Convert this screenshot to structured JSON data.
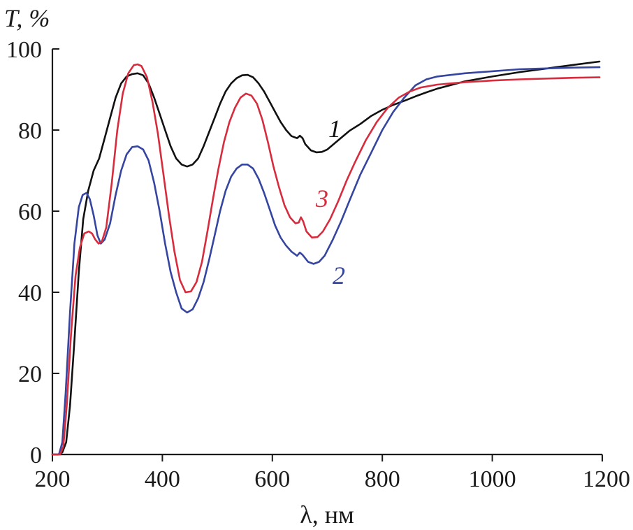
{
  "chart_data": {
    "type": "line",
    "ylabel": "T, %",
    "xlabel": "λ, нм",
    "xlim": [
      200,
      1200
    ],
    "ylim": [
      0,
      100
    ],
    "x_ticks": [
      "200",
      "400",
      "600",
      "800",
      "1000",
      "1200"
    ],
    "y_ticks": [
      "0",
      "20",
      "40",
      "60",
      "80",
      "100"
    ],
    "grid": false,
    "series": [
      {
        "name": "1",
        "color": "#111111",
        "points": [
          [
            200,
            0
          ],
          [
            210,
            0
          ],
          [
            218,
            0.5
          ],
          [
            225,
            3
          ],
          [
            232,
            12
          ],
          [
            240,
            28
          ],
          [
            248,
            45
          ],
          [
            256,
            58
          ],
          [
            265,
            65
          ],
          [
            275,
            70
          ],
          [
            285,
            73
          ],
          [
            295,
            78
          ],
          [
            305,
            83
          ],
          [
            315,
            88
          ],
          [
            325,
            91.5
          ],
          [
            335,
            93.2
          ],
          [
            345,
            93.8
          ],
          [
            355,
            94
          ],
          [
            365,
            93.5
          ],
          [
            375,
            91.5
          ],
          [
            385,
            88
          ],
          [
            395,
            84
          ],
          [
            405,
            80
          ],
          [
            415,
            76
          ],
          [
            425,
            73
          ],
          [
            435,
            71.5
          ],
          [
            445,
            71
          ],
          [
            455,
            71.5
          ],
          [
            465,
            73
          ],
          [
            475,
            76
          ],
          [
            485,
            79.5
          ],
          [
            495,
            83
          ],
          [
            505,
            86.5
          ],
          [
            515,
            89.5
          ],
          [
            525,
            91.5
          ],
          [
            535,
            92.8
          ],
          [
            545,
            93.5
          ],
          [
            555,
            93.6
          ],
          [
            565,
            93
          ],
          [
            575,
            91.5
          ],
          [
            585,
            89.5
          ],
          [
            595,
            87
          ],
          [
            605,
            84.5
          ],
          [
            615,
            82
          ],
          [
            625,
            80
          ],
          [
            635,
            78.5
          ],
          [
            645,
            78
          ],
          [
            650,
            78.6
          ],
          [
            655,
            78
          ],
          [
            660,
            76.5
          ],
          [
            670,
            75
          ],
          [
            680,
            74.5
          ],
          [
            690,
            74.6
          ],
          [
            700,
            75.2
          ],
          [
            720,
            77.5
          ],
          [
            740,
            79.8
          ],
          [
            760,
            81.5
          ],
          [
            780,
            83.5
          ],
          [
            800,
            85
          ],
          [
            820,
            86.2
          ],
          [
            840,
            87.2
          ],
          [
            860,
            88.3
          ],
          [
            880,
            89.3
          ],
          [
            900,
            90.2
          ],
          [
            950,
            92
          ],
          [
            1000,
            93.2
          ],
          [
            1050,
            94.3
          ],
          [
            1100,
            95.2
          ],
          [
            1150,
            96.1
          ],
          [
            1195,
            96.9
          ]
        ]
      },
      {
        "name": "2",
        "color": "#3545a0",
        "points": [
          [
            200,
            0
          ],
          [
            212,
            0
          ],
          [
            218,
            3
          ],
          [
            224,
            15
          ],
          [
            232,
            35
          ],
          [
            240,
            52
          ],
          [
            248,
            61
          ],
          [
            255,
            64
          ],
          [
            262,
            64.5
          ],
          [
            268,
            63
          ],
          [
            275,
            59
          ],
          [
            282,
            54
          ],
          [
            288,
            52
          ],
          [
            295,
            53
          ],
          [
            305,
            57
          ],
          [
            315,
            64
          ],
          [
            325,
            70
          ],
          [
            335,
            74
          ],
          [
            345,
            75.8
          ],
          [
            355,
            76
          ],
          [
            365,
            75.2
          ],
          [
            375,
            72.5
          ],
          [
            385,
            67
          ],
          [
            395,
            60
          ],
          [
            405,
            52
          ],
          [
            415,
            45
          ],
          [
            425,
            40
          ],
          [
            435,
            36
          ],
          [
            445,
            35
          ],
          [
            455,
            35.8
          ],
          [
            465,
            38.5
          ],
          [
            475,
            42.5
          ],
          [
            485,
            48
          ],
          [
            495,
            54
          ],
          [
            505,
            60
          ],
          [
            515,
            65
          ],
          [
            525,
            68.5
          ],
          [
            535,
            70.5
          ],
          [
            545,
            71.5
          ],
          [
            555,
            71.5
          ],
          [
            565,
            70.5
          ],
          [
            575,
            68
          ],
          [
            585,
            64.5
          ],
          [
            595,
            60.5
          ],
          [
            605,
            56.5
          ],
          [
            615,
            53.5
          ],
          [
            625,
            51.5
          ],
          [
            635,
            50
          ],
          [
            645,
            49
          ],
          [
            650,
            49.8
          ],
          [
            655,
            49.2
          ],
          [
            665,
            47.5
          ],
          [
            675,
            47
          ],
          [
            685,
            47.5
          ],
          [
            695,
            49
          ],
          [
            710,
            53
          ],
          [
            725,
            57.5
          ],
          [
            740,
            62.5
          ],
          [
            760,
            69
          ],
          [
            780,
            74.5
          ],
          [
            800,
            80
          ],
          [
            820,
            84.5
          ],
          [
            840,
            88
          ],
          [
            860,
            91
          ],
          [
            880,
            92.5
          ],
          [
            900,
            93.2
          ],
          [
            950,
            94
          ],
          [
            1000,
            94.5
          ],
          [
            1050,
            95
          ],
          [
            1100,
            95.2
          ],
          [
            1150,
            95.4
          ],
          [
            1195,
            95.5
          ]
        ]
      },
      {
        "name": "3",
        "color": "#d62c3d",
        "points": [
          [
            200,
            0
          ],
          [
            214,
            0
          ],
          [
            220,
            2
          ],
          [
            226,
            12
          ],
          [
            234,
            30
          ],
          [
            242,
            44
          ],
          [
            250,
            51
          ],
          [
            258,
            54.5
          ],
          [
            266,
            55
          ],
          [
            272,
            54.5
          ],
          [
            278,
            53
          ],
          [
            284,
            52
          ],
          [
            290,
            52.5
          ],
          [
            298,
            56
          ],
          [
            308,
            67
          ],
          [
            318,
            80
          ],
          [
            328,
            89
          ],
          [
            338,
            94
          ],
          [
            348,
            96
          ],
          [
            355,
            96.2
          ],
          [
            362,
            95.8
          ],
          [
            372,
            93
          ],
          [
            382,
            87
          ],
          [
            392,
            79
          ],
          [
            402,
            69
          ],
          [
            412,
            59
          ],
          [
            422,
            50
          ],
          [
            432,
            43
          ],
          [
            442,
            40
          ],
          [
            452,
            40.2
          ],
          [
            462,
            42.5
          ],
          [
            472,
            47.5
          ],
          [
            482,
            55
          ],
          [
            492,
            63
          ],
          [
            502,
            70.5
          ],
          [
            512,
            77
          ],
          [
            522,
            82
          ],
          [
            532,
            85.5
          ],
          [
            542,
            88
          ],
          [
            552,
            89
          ],
          [
            562,
            88.5
          ],
          [
            572,
            86.5
          ],
          [
            582,
            82.5
          ],
          [
            592,
            77
          ],
          [
            602,
            71
          ],
          [
            612,
            66
          ],
          [
            622,
            61.5
          ],
          [
            632,
            58.5
          ],
          [
            642,
            57
          ],
          [
            648,
            57.2
          ],
          [
            652,
            58.5
          ],
          [
            656,
            57.5
          ],
          [
            662,
            55
          ],
          [
            672,
            53.5
          ],
          [
            682,
            53.6
          ],
          [
            692,
            55
          ],
          [
            705,
            58
          ],
          [
            720,
            62.5
          ],
          [
            735,
            67.5
          ],
          [
            750,
            72
          ],
          [
            770,
            77.5
          ],
          [
            790,
            82
          ],
          [
            810,
            85.5
          ],
          [
            830,
            88
          ],
          [
            850,
            89.5
          ],
          [
            870,
            90.5
          ],
          [
            900,
            91.2
          ],
          [
            950,
            91.8
          ],
          [
            1000,
            92.2
          ],
          [
            1050,
            92.5
          ],
          [
            1100,
            92.7
          ],
          [
            1150,
            92.9
          ],
          [
            1195,
            93
          ]
        ]
      }
    ]
  }
}
